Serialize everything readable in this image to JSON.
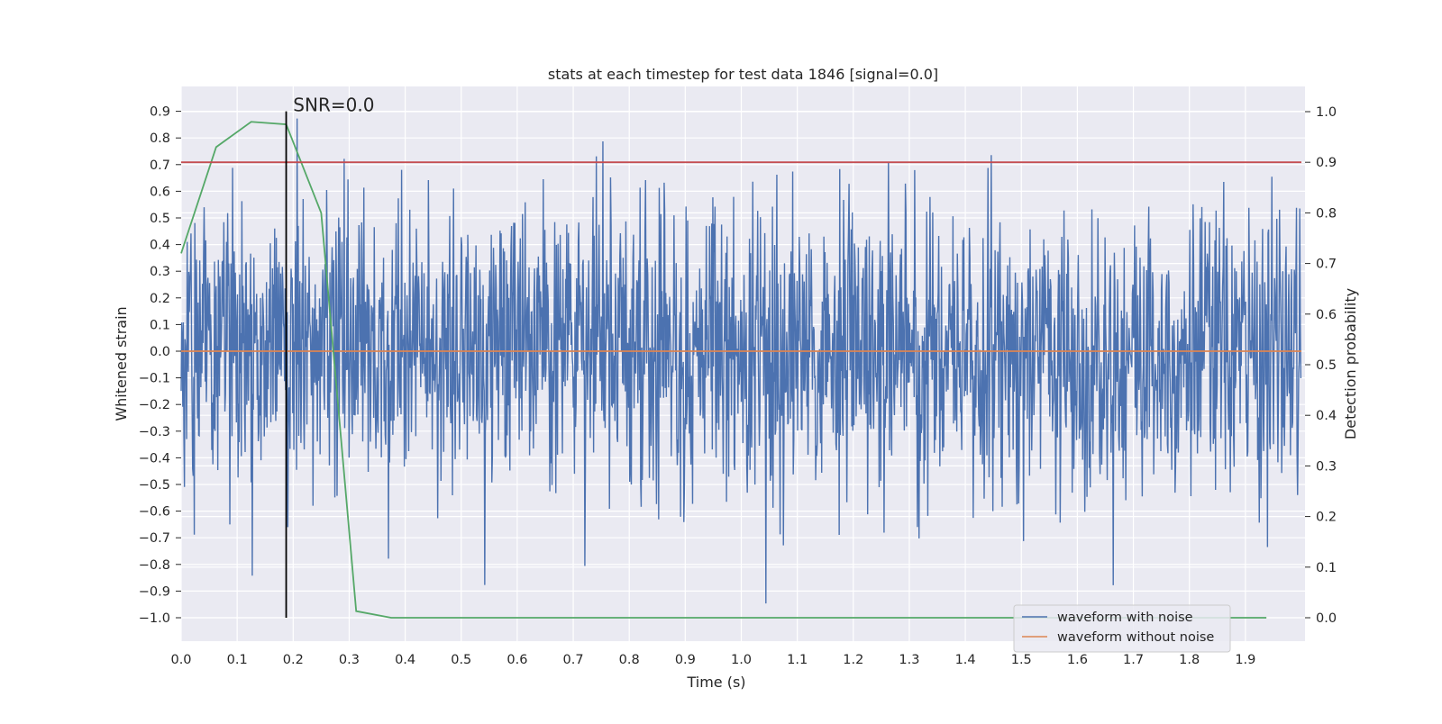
{
  "chart_data": {
    "type": "line",
    "title": "stats at each timestep for test data 1846 [signal=0.0]",
    "xlabel": "Time (s)",
    "ylabel": "Whitened strain",
    "y2label": "Detection probability",
    "xlim": [
      0.0,
      2.0
    ],
    "ylim": [
      -1.09,
      0.99
    ],
    "y2lim": [
      -0.045,
      1.045
    ],
    "xticks": [
      "0.0",
      "0.1",
      "0.2",
      "0.3",
      "0.4",
      "0.5",
      "0.6",
      "0.7",
      "0.8",
      "0.9",
      "1.0",
      "1.1",
      "1.2",
      "1.3",
      "1.4",
      "1.5",
      "1.6",
      "1.7",
      "1.8",
      "1.9"
    ],
    "yticks": [
      "0.9",
      "0.8",
      "0.7",
      "0.6",
      "0.5",
      "0.4",
      "0.3",
      "0.2",
      "0.1",
      "0.0",
      "−0.1",
      "−0.2",
      "−0.3",
      "−0.4",
      "−0.5",
      "−0.6",
      "−0.7",
      "−0.8",
      "−0.9",
      "−1.0"
    ],
    "y2ticks": [
      "1.0",
      "0.9",
      "0.8",
      "0.7",
      "0.6",
      "0.5",
      "0.4",
      "0.3",
      "0.2",
      "0.1",
      "0.0"
    ],
    "grid": true,
    "legend_position": "lower-right",
    "series": [
      {
        "name": "waveform with noise",
        "axis": "left",
        "color": "#4c72b0",
        "description_note": "dense noise trace, 2048 samples, approx. uniform amplitude between -1.0 and 0.9"
      },
      {
        "name": "waveform without noise",
        "axis": "left",
        "color": "#dd8452",
        "x": [
          0.0,
          2.0
        ],
        "y": [
          0.0,
          0.0
        ]
      },
      {
        "axis": "right",
        "color": "#55a868",
        "x": [
          0.0,
          0.0625,
          0.125,
          0.1875,
          0.25,
          0.3125,
          0.375,
          0.4375,
          0.5,
          0.5625,
          0.625,
          0.6875,
          0.75,
          0.8125,
          0.875,
          0.9375,
          1.0,
          1.0625,
          1.125,
          1.1875,
          1.25,
          1.3125,
          1.375,
          1.4375,
          1.5,
          1.5625,
          1.625,
          1.6875,
          1.75,
          1.8125,
          1.875,
          1.9375
        ],
        "y": [
          0.72,
          0.93,
          0.98,
          0.975,
          0.8,
          0.013,
          0.0,
          0.0,
          0.0,
          0.0,
          0.0,
          0.0,
          0.0,
          0.0,
          0.0,
          0.0,
          0.0,
          0.0,
          0.0,
          0.0,
          0.0,
          0.0,
          0.0,
          0.0,
          0.0,
          0.0,
          0.0,
          0.0,
          0.0,
          0.0,
          0.0,
          0.0
        ]
      },
      {
        "axis": "right",
        "color": "#c44e52",
        "x": [
          0.0,
          2.0
        ],
        "y": [
          0.9,
          0.9
        ]
      }
    ],
    "marker_line": {
      "x": 0.1875,
      "y_from": -1.0,
      "y_to": 0.9,
      "color": "#000000"
    },
    "annotation": {
      "text": "SNR=0.0",
      "x": 0.2,
      "y": 0.92
    }
  },
  "legend": {
    "items": [
      {
        "label": "waveform with noise",
        "color": "#4c72b0"
      },
      {
        "label": "waveform without noise",
        "color": "#dd8452"
      }
    ]
  }
}
